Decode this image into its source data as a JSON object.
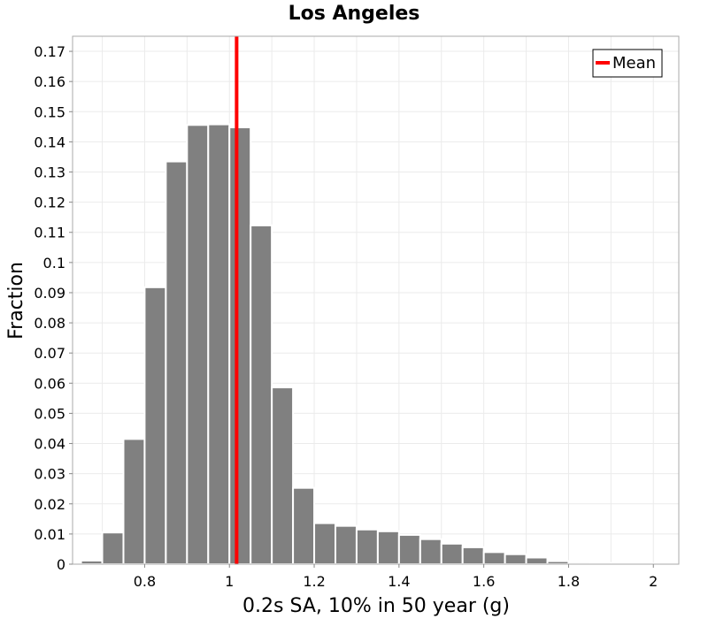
{
  "chart_data": {
    "type": "bar",
    "title": "Los Angeles",
    "xlabel": "0.2s SA, 10% in 50 year (g)",
    "ylabel": "Fraction",
    "xlim": [
      0.63,
      2.06
    ],
    "ylim": [
      0,
      0.175
    ],
    "bin_width": 0.05,
    "x_ticks": [
      0.8,
      1.0,
      1.2,
      1.4,
      1.6,
      1.8,
      2.0
    ],
    "x_tick_labels": [
      "0.8",
      "1",
      "1.2",
      "1.4",
      "1.6",
      "1.8",
      "2"
    ],
    "y_ticks": [
      0,
      0.01,
      0.02,
      0.03,
      0.04,
      0.05,
      0.06,
      0.07,
      0.08,
      0.09,
      0.1,
      0.11,
      0.12,
      0.13,
      0.14,
      0.15,
      0.16,
      0.17
    ],
    "y_tick_labels": [
      "0",
      "0.01",
      "0.02",
      "0.03",
      "0.04",
      "0.05",
      "0.06",
      "0.07",
      "0.08",
      "0.09",
      "0.1",
      "0.11",
      "0.12",
      "0.13",
      "0.14",
      "0.15",
      "0.16",
      "0.17"
    ],
    "bins": [
      {
        "x": 0.675,
        "value": 0.0012
      },
      {
        "x": 0.725,
        "value": 0.0105
      },
      {
        "x": 0.775,
        "value": 0.0415
      },
      {
        "x": 0.825,
        "value": 0.0918
      },
      {
        "x": 0.875,
        "value": 0.1335
      },
      {
        "x": 0.925,
        "value": 0.1456
      },
      {
        "x": 0.975,
        "value": 0.1458
      },
      {
        "x": 1.025,
        "value": 0.1448
      },
      {
        "x": 1.075,
        "value": 0.1123
      },
      {
        "x": 1.125,
        "value": 0.0586
      },
      {
        "x": 1.175,
        "value": 0.0253
      },
      {
        "x": 1.225,
        "value": 0.0136
      },
      {
        "x": 1.275,
        "value": 0.0127
      },
      {
        "x": 1.325,
        "value": 0.0115
      },
      {
        "x": 1.375,
        "value": 0.0109
      },
      {
        "x": 1.425,
        "value": 0.0097
      },
      {
        "x": 1.475,
        "value": 0.0083
      },
      {
        "x": 1.525,
        "value": 0.0068
      },
      {
        "x": 1.575,
        "value": 0.0056
      },
      {
        "x": 1.625,
        "value": 0.004
      },
      {
        "x": 1.675,
        "value": 0.0033
      },
      {
        "x": 1.725,
        "value": 0.0022
      },
      {
        "x": 1.775,
        "value": 0.001
      },
      {
        "x": 1.825,
        "value": 0.0006
      },
      {
        "x": 1.875,
        "value": 0.0004
      },
      {
        "x": 1.925,
        "value": 0.0001
      },
      {
        "x": 1.975,
        "value": 0.0001
      },
      {
        "x": 2.025,
        "value": 0.0001
      }
    ],
    "mean": 1.017,
    "mean_label": "Mean",
    "legend_position": "top-right",
    "grid": true,
    "colors": {
      "bar": "#808080",
      "bar_edge": "#ffffff",
      "mean_line": "#ff0000",
      "grid": "#ebebeb",
      "frame": "#aaaaaa"
    }
  }
}
